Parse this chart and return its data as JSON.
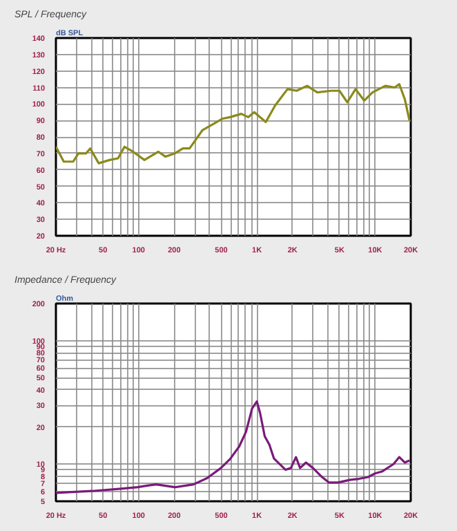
{
  "chart_data": [
    {
      "type": "line",
      "title": "SPL / Frequency",
      "ylabel": "dB SPL",
      "log": "x",
      "grid": true,
      "marker": "none",
      "line_style": "solid",
      "xlim": [
        20,
        20000
      ],
      "ylim": [
        20,
        140
      ],
      "xticks": [
        {
          "value": 20,
          "label": "20 Hz"
        },
        {
          "value": 30,
          "label": null
        },
        {
          "value": 40,
          "label": null
        },
        50,
        {
          "value": 60,
          "label": null
        },
        {
          "value": 70,
          "label": null
        },
        {
          "value": 80,
          "label": null
        },
        {
          "value": 90,
          "label": null
        },
        100,
        200,
        {
          "value": 300,
          "label": null
        },
        {
          "value": 400,
          "label": null
        },
        500,
        {
          "value": 600,
          "label": null
        },
        {
          "value": 700,
          "label": null
        },
        {
          "value": 800,
          "label": null
        },
        {
          "value": 900,
          "label": null
        },
        {
          "value": 1000,
          "label": "1K"
        },
        {
          "value": 2000,
          "label": "2K"
        },
        {
          "value": 3000,
          "label": null
        },
        {
          "value": 4000,
          "label": null
        },
        {
          "value": 5000,
          "label": "5K"
        },
        {
          "value": 6000,
          "label": null
        },
        {
          "value": 7000,
          "label": null
        },
        {
          "value": 8000,
          "label": null
        },
        {
          "value": 9000,
          "label": null
        },
        {
          "value": 10000,
          "label": "10K"
        },
        {
          "value": 20000,
          "label": "20K"
        }
      ],
      "yticks": [
        20,
        30,
        40,
        50,
        60,
        70,
        80,
        90,
        100,
        110,
        120,
        130,
        140
      ],
      "x": [
        20,
        23.3,
        28,
        31,
        36,
        39,
        46,
        57,
        67,
        76,
        90,
        112,
        147,
        169,
        203,
        237,
        270,
        346,
        433,
        509,
        594,
        739,
        845,
        950,
        1190,
        1425,
        1815,
        2170,
        2660,
        3240,
        4240,
        4990,
        5810,
        6830,
        8080,
        9500,
        12200,
        14600,
        16000,
        17800,
        19500
      ],
      "series": [
        {
          "color": "#8a8a1a",
          "values": [
            74,
            65,
            65,
            70,
            70,
            73,
            64,
            66,
            67,
            74,
            71,
            66,
            71,
            68,
            70,
            73,
            73,
            84,
            88,
            91,
            92,
            94,
            92,
            95,
            89,
            99,
            109,
            108,
            111,
            107,
            108,
            108,
            101,
            109,
            102,
            107,
            111,
            110,
            112,
            103,
            90
          ]
        }
      ]
    },
    {
      "type": "line",
      "title": "Impedance / Frequency",
      "ylabel": "Ohm",
      "log": "xy",
      "grid": true,
      "marker": "none",
      "line_style": "solid",
      "xlim": [
        20,
        20000
      ],
      "ylim": [
        5,
        200
      ],
      "xticks": [
        {
          "value": 20,
          "label": "20 Hz"
        },
        {
          "value": 30,
          "label": null
        },
        {
          "value": 40,
          "label": null
        },
        50,
        {
          "value": 60,
          "label": null
        },
        {
          "value": 70,
          "label": null
        },
        {
          "value": 80,
          "label": null
        },
        {
          "value": 90,
          "label": null
        },
        100,
        200,
        {
          "value": 300,
          "label": null
        },
        {
          "value": 400,
          "label": null
        },
        500,
        {
          "value": 600,
          "label": null
        },
        {
          "value": 700,
          "label": null
        },
        {
          "value": 800,
          "label": null
        },
        {
          "value": 900,
          "label": null
        },
        {
          "value": 1000,
          "label": "1K"
        },
        {
          "value": 2000,
          "label": "2K"
        },
        {
          "value": 3000,
          "label": null
        },
        {
          "value": 4000,
          "label": null
        },
        {
          "value": 5000,
          "label": "5K"
        },
        {
          "value": 6000,
          "label": null
        },
        {
          "value": 7000,
          "label": null
        },
        {
          "value": 8000,
          "label": null
        },
        {
          "value": 9000,
          "label": null
        },
        {
          "value": 10000,
          "label": "10K"
        },
        {
          "value": 20000,
          "label": "20K"
        }
      ],
      "yticks": [
        5,
        6,
        7,
        8,
        9,
        10,
        20,
        30,
        40,
        50,
        60,
        70,
        80,
        90,
        100,
        200
      ],
      "x": [
        20,
        40,
        68,
        98,
        118,
        141,
        203,
        291,
        380,
        497,
        594,
        709,
        810,
        911,
        1000,
        1065,
        1165,
        1275,
        1395,
        1745,
        1940,
        2140,
        2320,
        2600,
        2980,
        3560,
        4060,
        4860,
        6090,
        7290,
        8720,
        9980,
        11400,
        14300,
        16000,
        17800,
        19500
      ],
      "series": [
        {
          "color": "#7a1a7a",
          "values": [
            5.85,
            6.05,
            6.3,
            6.5,
            6.7,
            6.85,
            6.5,
            6.85,
            7.7,
            9.3,
            11.0,
            13.9,
            18.3,
            28.2,
            32.2,
            25.9,
            16.8,
            14.4,
            11.1,
            9.0,
            9.3,
            11.4,
            9.3,
            10.3,
            9.3,
            7.85,
            7.1,
            7.1,
            7.45,
            7.6,
            7.85,
            8.4,
            8.7,
            10.0,
            11.4,
            10.3,
            10.7
          ]
        }
      ]
    }
  ]
}
